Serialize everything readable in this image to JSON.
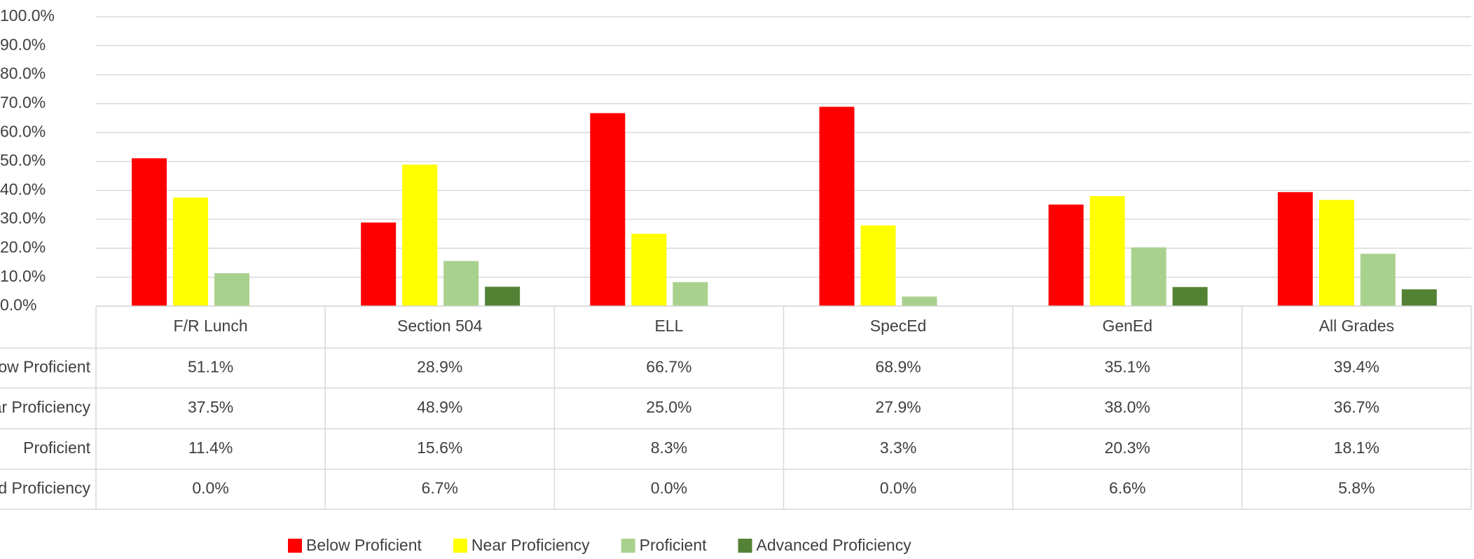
{
  "chart_data": {
    "type": "bar",
    "categories": [
      "F/R Lunch",
      "Section 504",
      "ELL",
      "SpecEd",
      "GenEd",
      "All Grades"
    ],
    "series": [
      {
        "name": "Below Proficient",
        "color": "#ff0000",
        "values": [
          51.1,
          28.9,
          66.7,
          68.9,
          35.1,
          39.4
        ],
        "value_labels": [
          "51.1%",
          "28.9%",
          "66.7%",
          "68.9%",
          "35.1%",
          "39.4%"
        ]
      },
      {
        "name": "Near Proficiency",
        "color": "#ffff00",
        "values": [
          37.5,
          48.9,
          25.0,
          27.9,
          38.0,
          36.7
        ],
        "value_labels": [
          "37.5%",
          "48.9%",
          "25.0%",
          "27.9%",
          "38.0%",
          "36.7%"
        ]
      },
      {
        "name": "Proficient",
        "color": "#a9d18e",
        "values": [
          11.4,
          15.6,
          8.3,
          3.3,
          20.3,
          18.1
        ],
        "value_labels": [
          "11.4%",
          "15.6%",
          "8.3%",
          "3.3%",
          "20.3%",
          "18.1%"
        ]
      },
      {
        "name": "Advanced Proficiency",
        "color": "#548235",
        "values": [
          0.0,
          6.7,
          0.0,
          0.0,
          6.6,
          5.8
        ],
        "value_labels": [
          "0.0%",
          "6.7%",
          "0.0%",
          "0.0%",
          "6.6%",
          "5.8%"
        ]
      }
    ],
    "ylim": [
      0,
      100
    ],
    "yticks": [
      {
        "value": 0,
        "label": "0.0%"
      },
      {
        "value": 10,
        "label": "10.0%"
      },
      {
        "value": 20,
        "label": "20.0%"
      },
      {
        "value": 30,
        "label": "30.0%"
      },
      {
        "value": 40,
        "label": "40.0%"
      },
      {
        "value": 50,
        "label": "50.0%"
      },
      {
        "value": 60,
        "label": "60.0%"
      },
      {
        "value": 70,
        "label": "70.0%"
      },
      {
        "value": 80,
        "label": "80.0%"
      },
      {
        "value": 90,
        "label": "90.0%"
      },
      {
        "value": 100,
        "label": "100.0%"
      }
    ],
    "grid": true,
    "legend": "bottom"
  }
}
